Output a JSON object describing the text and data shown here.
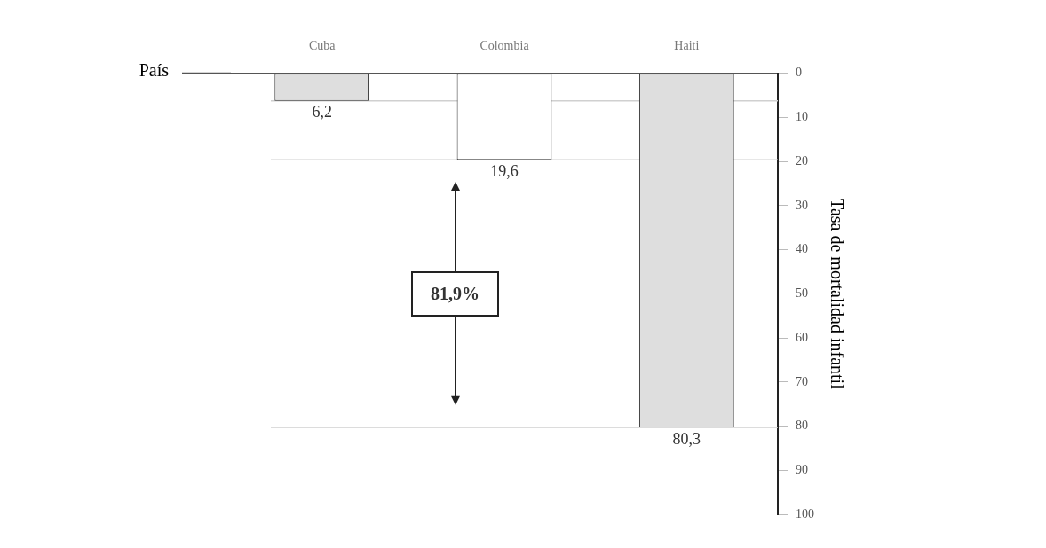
{
  "chart_data": {
    "type": "bar",
    "ylabel": "Tasa de mortalidad infantil",
    "categories": [
      "Cuba",
      "Colombia",
      "Haiti"
    ],
    "values": [
      6.2,
      19.6,
      80.3
    ],
    "colors": [
      "#dedede",
      "#ffffff",
      "#dedede"
    ],
    "value_labels": [
      "6,2",
      "19,6",
      "80,3"
    ],
    "ylim": [
      100,
      0
    ],
    "yticks": [
      0,
      10,
      20,
      30,
      40,
      50,
      60,
      70,
      80,
      90,
      100
    ],
    "ref_lines": [
      {
        "axis": "y",
        "value": 6.2,
        "color": "#d0d0d0"
      },
      {
        "axis": "y",
        "value": 19.6,
        "color": "#d0d0d0"
      },
      {
        "axis": "y",
        "value": 80.3,
        "color": "#d0d0d0"
      }
    ],
    "annotations": [
      "País",
      "81,9%"
    ],
    "grid": false,
    "legend": false
  }
}
